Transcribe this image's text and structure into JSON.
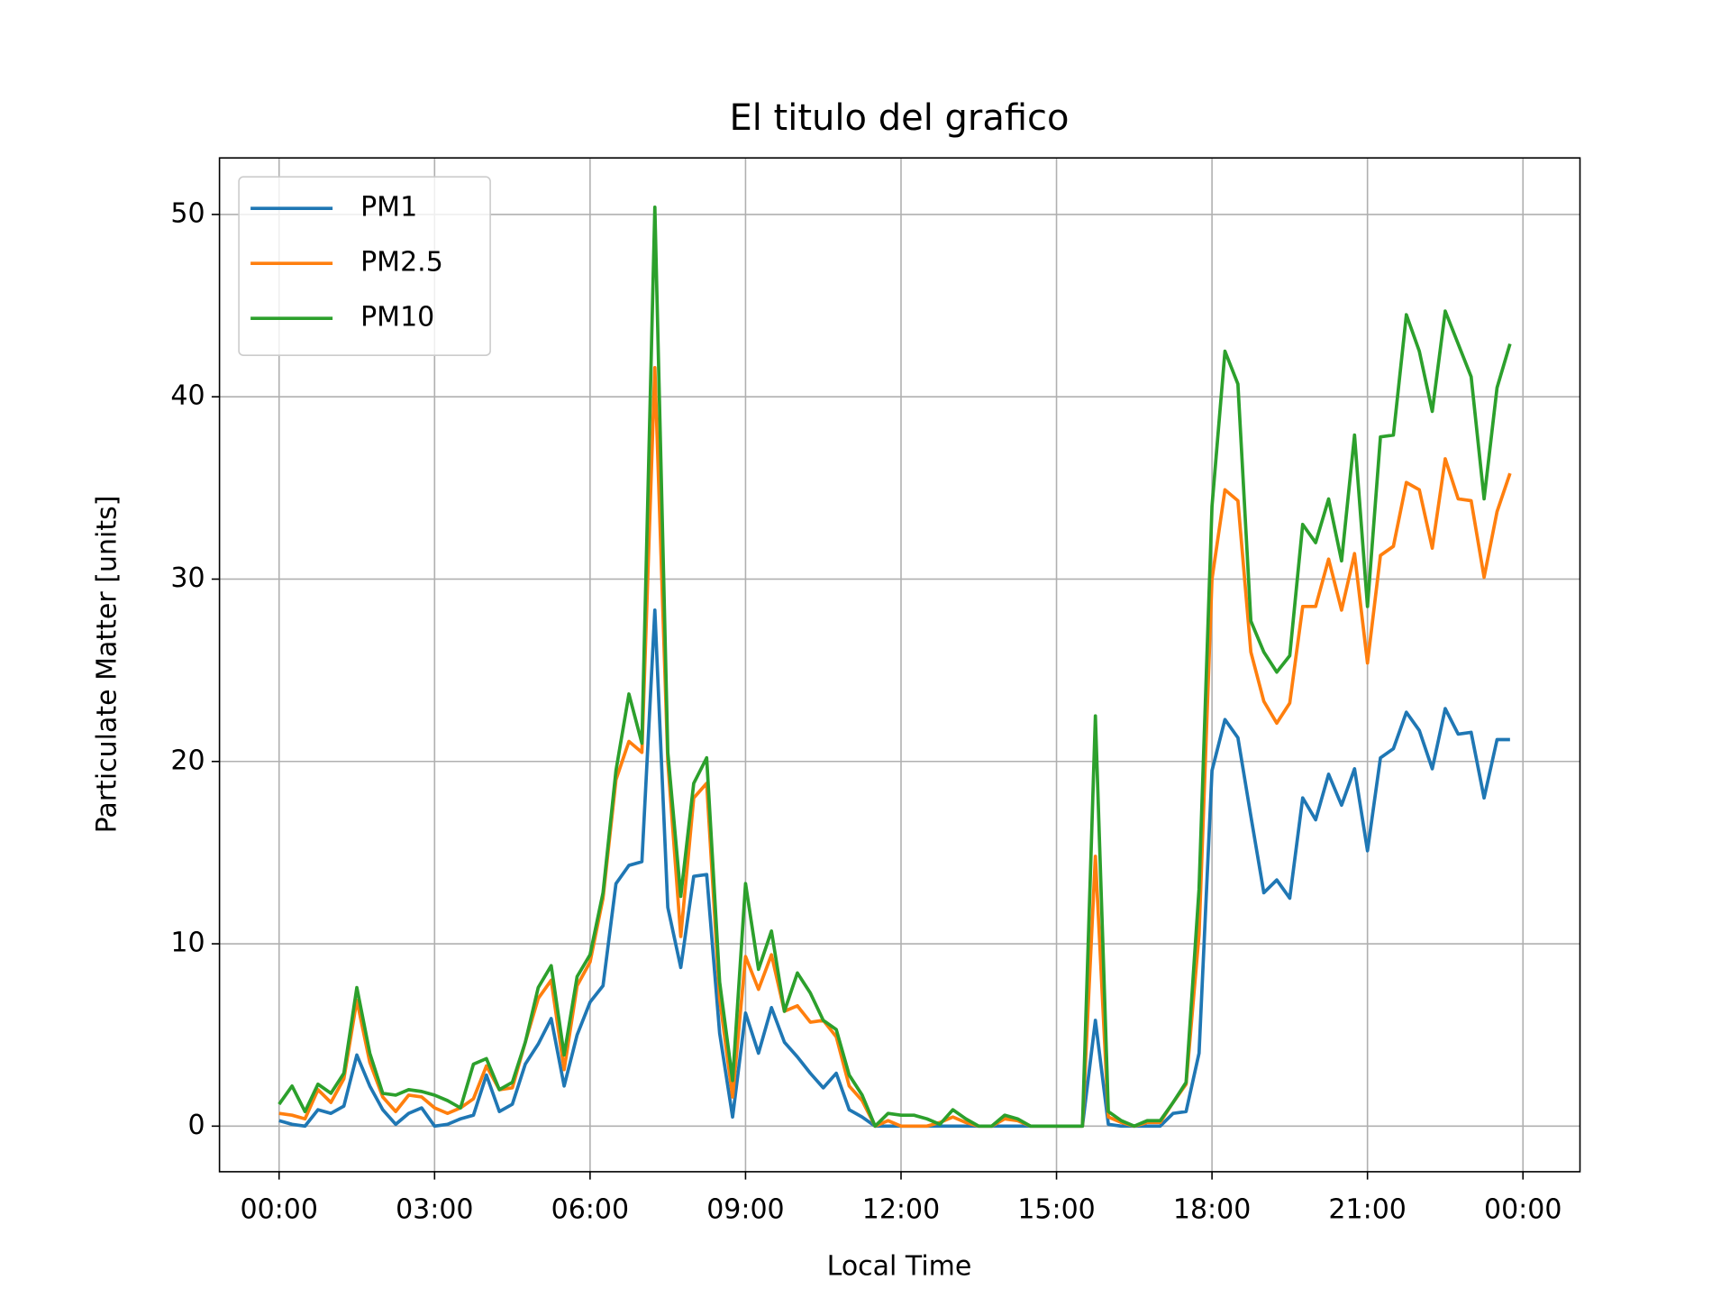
{
  "chart_data": {
    "type": "line",
    "title": "El titulo del grafico",
    "xlabel": "Local Time",
    "ylabel": "Particulate Matter [units]",
    "x": [
      0,
      0.25,
      0.5,
      0.75,
      1,
      1.25,
      1.5,
      1.75,
      2,
      2.25,
      2.5,
      2.75,
      3,
      3.25,
      3.5,
      3.75,
      4,
      4.25,
      4.5,
      4.75,
      5,
      5.25,
      5.5,
      5.75,
      6,
      6.25,
      6.5,
      6.75,
      7,
      7.25,
      7.5,
      7.75,
      8,
      8.25,
      8.5,
      8.75,
      9,
      9.25,
      9.5,
      9.75,
      10,
      10.25,
      10.5,
      10.75,
      11,
      11.25,
      11.5,
      11.75,
      12,
      12.25,
      12.5,
      12.75,
      13,
      13.25,
      13.5,
      13.75,
      14,
      14.25,
      14.5,
      14.75,
      15,
      15.25,
      15.5,
      15.75,
      16,
      16.25,
      16.5,
      16.75,
      17,
      17.25,
      17.5,
      17.75,
      18,
      18.25,
      18.5,
      18.75,
      19,
      19.25,
      19.5,
      19.75,
      20,
      20.25,
      20.5,
      20.75,
      21,
      21.25,
      21.5,
      21.75,
      22,
      22.25,
      22.5,
      22.75,
      23,
      23.25,
      23.5,
      23.75
    ],
    "series": [
      {
        "name": "PM1",
        "color": "#1f77b4",
        "values": [
          0.3,
          0.1,
          0,
          0.9,
          0.7,
          1.1,
          3.9,
          2.2,
          0.9,
          0.1,
          0.7,
          1.0,
          0,
          0.1,
          0.4,
          0.6,
          2.8,
          0.8,
          1.2,
          3.4,
          4.5,
          5.9,
          2.2,
          5.0,
          6.8,
          7.7,
          13.3,
          14.3,
          14.5,
          28.3,
          12.0,
          8.7,
          13.7,
          13.8,
          5.1,
          0.5,
          6.2,
          4.0,
          6.5,
          4.6,
          3.8,
          2.9,
          2.1,
          2.9,
          0.9,
          0.5,
          0,
          0,
          0,
          0,
          0,
          0,
          0,
          0,
          0,
          0,
          0,
          0,
          0,
          0,
          0,
          0,
          0,
          5.8,
          0.1,
          0,
          0,
          0,
          0,
          0.7,
          0.8,
          4.0,
          19.5,
          22.3,
          21.3,
          17.0,
          12.8,
          13.5,
          12.5,
          18.0,
          16.8,
          19.3,
          17.6,
          19.6,
          15.1,
          20.2,
          20.7,
          22.7,
          21.7,
          19.6,
          22.9,
          21.5,
          21.6,
          18.0,
          21.2,
          21.2
        ]
      },
      {
        "name": "PM2.5",
        "color": "#ff7f0e",
        "values": [
          0.7,
          0.6,
          0.4,
          2.0,
          1.3,
          2.6,
          6.9,
          3.5,
          1.6,
          0.8,
          1.7,
          1.6,
          1.0,
          0.7,
          1.0,
          1.5,
          3.3,
          2.0,
          2.1,
          4.6,
          7.0,
          8.0,
          3.1,
          7.7,
          9.0,
          12.5,
          19.0,
          21.1,
          20.5,
          41.6,
          20.0,
          10.4,
          18.0,
          18.8,
          7.0,
          1.6,
          9.3,
          7.5,
          9.4,
          6.3,
          6.6,
          5.7,
          5.8,
          4.9,
          2.2,
          1.4,
          0,
          0.3,
          0,
          0,
          0,
          0.2,
          0.5,
          0.2,
          0,
          0,
          0.4,
          0.3,
          0,
          0,
          0,
          0,
          0,
          14.8,
          0.5,
          0.2,
          0,
          0.2,
          0.2,
          1.3,
          2.3,
          10.5,
          30.0,
          34.9,
          34.3,
          26.0,
          23.3,
          22.1,
          23.2,
          28.5,
          28.5,
          31.1,
          28.3,
          31.4,
          25.4,
          31.3,
          31.8,
          35.3,
          34.9,
          31.7,
          36.6,
          34.4,
          34.3,
          30.1,
          33.7,
          35.8
        ]
      },
      {
        "name": "PM10",
        "color": "#2ca02c",
        "values": [
          1.2,
          2.2,
          0.8,
          2.3,
          1.8,
          2.9,
          7.6,
          4.0,
          1.8,
          1.7,
          2.0,
          1.9,
          1.7,
          1.4,
          1.0,
          3.4,
          3.7,
          2.0,
          2.4,
          4.6,
          7.6,
          8.8,
          3.9,
          8.2,
          9.4,
          12.8,
          19.5,
          23.7,
          21.0,
          50.4,
          20.5,
          12.6,
          18.8,
          20.2,
          7.9,
          2.5,
          13.3,
          8.6,
          10.7,
          6.3,
          8.4,
          7.3,
          5.8,
          5.3,
          2.8,
          1.7,
          0,
          0.7,
          0.6,
          0.6,
          0.4,
          0.1,
          0.9,
          0.4,
          0,
          0,
          0.6,
          0.4,
          0,
          0,
          0,
          0,
          0,
          22.5,
          0.8,
          0.3,
          0,
          0.3,
          0.3,
          1.3,
          2.4,
          13.0,
          34.0,
          42.5,
          40.7,
          27.7,
          26.0,
          24.9,
          25.8,
          33.0,
          32.0,
          34.4,
          31.0,
          37.9,
          28.5,
          37.8,
          37.9,
          44.5,
          42.5,
          39.2,
          44.7,
          42.9,
          41.1,
          34.4,
          40.5,
          42.9
        ]
      }
    ],
    "xlim": [
      -1.15,
      25.1
    ],
    "xticks": [
      {
        "value": 0,
        "label": "00:00"
      },
      {
        "value": 3,
        "label": "03:00"
      },
      {
        "value": 6,
        "label": "06:00"
      },
      {
        "value": 9,
        "label": "09:00"
      },
      {
        "value": 12,
        "label": "12:00"
      },
      {
        "value": 15,
        "label": "15:00"
      },
      {
        "value": 18,
        "label": "18:00"
      },
      {
        "value": 21,
        "label": "21:00"
      },
      {
        "value": 24,
        "label": "00:00"
      }
    ],
    "ylim": [
      -2.5,
      53.1
    ],
    "yticks": [
      0,
      10,
      20,
      30,
      40,
      50
    ],
    "grid": true,
    "legend": "upper left"
  }
}
